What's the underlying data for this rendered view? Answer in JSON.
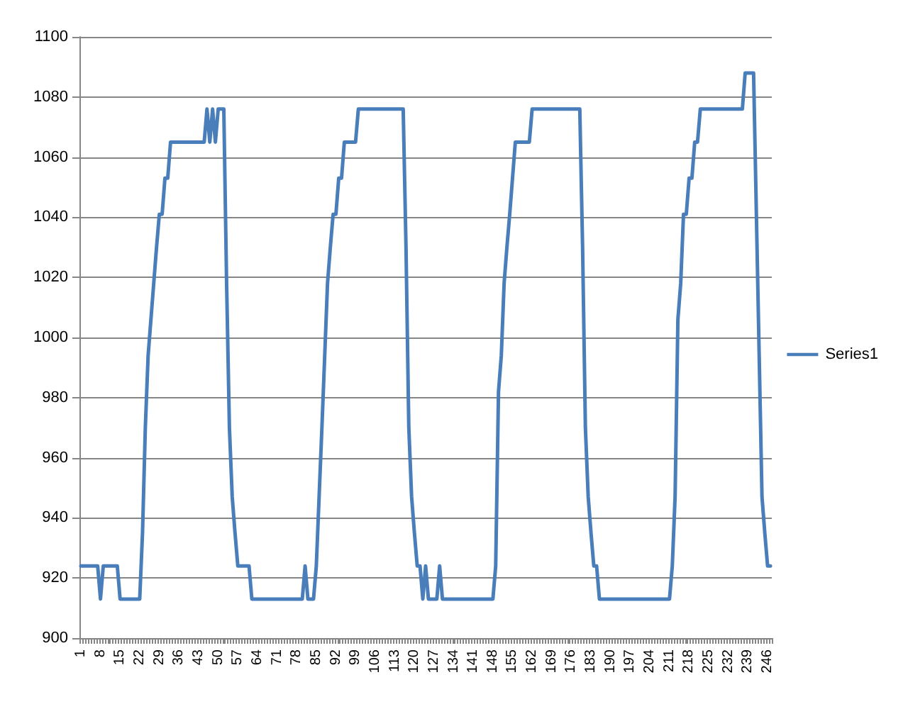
{
  "chart_data": {
    "type": "line",
    "categories": [
      "1",
      null,
      null,
      null,
      null,
      null,
      null,
      "8",
      null,
      null,
      null,
      null,
      null,
      null,
      "15",
      null,
      null,
      null,
      null,
      null,
      null,
      "22",
      null,
      null,
      null,
      null,
      null,
      null,
      "29",
      null,
      null,
      null,
      null,
      null,
      null,
      "36",
      null,
      null,
      null,
      null,
      null,
      null,
      "43",
      null,
      null,
      null,
      null,
      null,
      null,
      "50",
      null,
      null,
      null,
      null,
      null,
      null,
      "57",
      null,
      null,
      null,
      null,
      null,
      null,
      "64",
      null,
      null,
      null,
      null,
      null,
      null,
      "71",
      null,
      null,
      null,
      null,
      null,
      null,
      "78",
      null,
      null,
      null,
      null,
      null,
      null,
      "85",
      null,
      null,
      null,
      null,
      null,
      null,
      "92",
      null,
      null,
      null,
      null,
      null,
      null,
      "99",
      null,
      null,
      null,
      null,
      null,
      null,
      "106",
      null,
      null,
      null,
      null,
      null,
      null,
      "113",
      null,
      null,
      null,
      null,
      null,
      null,
      "120",
      null,
      null,
      null,
      null,
      null,
      null,
      "127",
      null,
      null,
      null,
      null,
      null,
      null,
      "134",
      null,
      null,
      null,
      null,
      null,
      null,
      "141",
      null,
      null,
      null,
      null,
      null,
      null,
      "148",
      null,
      null,
      null,
      null,
      null,
      null,
      "155",
      null,
      null,
      null,
      null,
      null,
      null,
      "162",
      null,
      null,
      null,
      null,
      null,
      null,
      "169",
      null,
      null,
      null,
      null,
      null,
      null,
      "176",
      null,
      null,
      null,
      null,
      null,
      null,
      "183",
      null,
      null,
      null,
      null,
      null,
      null,
      "190",
      null,
      null,
      null,
      null,
      null,
      null,
      "197",
      null,
      null,
      null,
      null,
      null,
      null,
      "204",
      null,
      null,
      null,
      null,
      null,
      null,
      "211",
      null,
      null,
      null,
      null,
      null,
      null,
      "218",
      null,
      null,
      null,
      null,
      null,
      null,
      "225",
      null,
      null,
      null,
      null,
      null,
      null,
      "232",
      null,
      null,
      null,
      null,
      null,
      null,
      "239",
      null,
      null,
      null,
      null,
      null,
      null,
      "246",
      null
    ],
    "series": [
      {
        "name": "Series1",
        "color": "#4a7ebb",
        "values": [
          924,
          924,
          924,
          924,
          924,
          924,
          924,
          913,
          924,
          924,
          924,
          924,
          924,
          924,
          913,
          913,
          913,
          913,
          913,
          913,
          913,
          913,
          935,
          970,
          994,
          1006,
          1018,
          1030,
          1041,
          1041,
          1053,
          1053,
          1065,
          1065,
          1065,
          1065,
          1065,
          1065,
          1065,
          1065,
          1065,
          1065,
          1065,
          1065,
          1065,
          1076,
          1065,
          1076,
          1065,
          1076,
          1076,
          1076,
          1018,
          970,
          947,
          935,
          924,
          924,
          924,
          924,
          924,
          913,
          913,
          913,
          913,
          913,
          913,
          913,
          913,
          913,
          913,
          913,
          913,
          913,
          913,
          913,
          913,
          913,
          913,
          913,
          924,
          913,
          913,
          913,
          924,
          947,
          970,
          994,
          1018,
          1030,
          1041,
          1041,
          1053,
          1053,
          1065,
          1065,
          1065,
          1065,
          1065,
          1076,
          1076,
          1076,
          1076,
          1076,
          1076,
          1076,
          1076,
          1076,
          1076,
          1076,
          1076,
          1076,
          1076,
          1076,
          1076,
          1076,
          1030,
          970,
          947,
          935,
          924,
          924,
          913,
          924,
          913,
          913,
          913,
          913,
          924,
          913,
          913,
          913,
          913,
          913,
          913,
          913,
          913,
          913,
          913,
          913,
          913,
          913,
          913,
          913,
          913,
          913,
          913,
          913,
          924,
          982,
          994,
          1018,
          1030,
          1041,
          1053,
          1065,
          1065,
          1065,
          1065,
          1065,
          1065,
          1076,
          1076,
          1076,
          1076,
          1076,
          1076,
          1076,
          1076,
          1076,
          1076,
          1076,
          1076,
          1076,
          1076,
          1076,
          1076,
          1076,
          1076,
          1030,
          970,
          947,
          935,
          924,
          924,
          913,
          913,
          913,
          913,
          913,
          913,
          913,
          913,
          913,
          913,
          913,
          913,
          913,
          913,
          913,
          913,
          913,
          913,
          913,
          913,
          913,
          913,
          913,
          913,
          913,
          913,
          924,
          947,
          1006,
          1018,
          1041,
          1041,
          1053,
          1053,
          1065,
          1065,
          1076,
          1076,
          1076,
          1076,
          1076,
          1076,
          1076,
          1076,
          1076,
          1076,
          1076,
          1076,
          1076,
          1076,
          1076,
          1076,
          1088,
          1088,
          1088,
          1088,
          1041,
          994,
          947,
          935,
          924,
          924
        ]
      }
    ],
    "ylim": [
      900,
      1100
    ],
    "yticks": [
      900,
      920,
      940,
      960,
      980,
      1000,
      1020,
      1040,
      1060,
      1080,
      1100
    ],
    "grid": "y",
    "legend": "right",
    "marker": "none",
    "line_style": "solid"
  }
}
